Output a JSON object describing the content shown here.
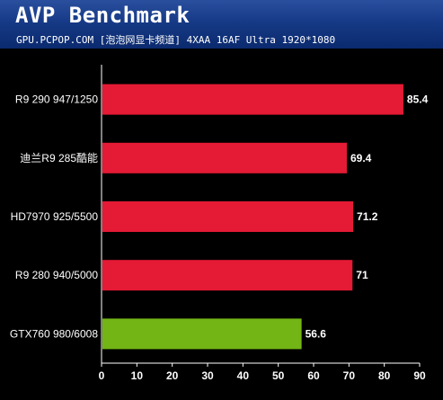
{
  "header": {
    "title": "AVP Benchmark",
    "subtitle": "GPU.PCPOP.COM [泡泡网显卡频道] 4XAA 16AF Ultra 1920*1080"
  },
  "chart_data": {
    "type": "bar",
    "orientation": "horizontal",
    "categories": [
      "R9 290 947/1250",
      "迪兰R9 285酷能",
      "HD7970 925/5500",
      "R9 280 940/5000",
      "GTX760 980/6008"
    ],
    "values": [
      85.4,
      69.4,
      71.2,
      71,
      56.6
    ],
    "value_labels": [
      "85.4",
      "69.4",
      "71.2",
      "71",
      "56.6"
    ],
    "bar_colors": [
      "#e51a35",
      "#e51a35",
      "#e51a35",
      "#e51a35",
      "#72b515"
    ],
    "xlim": [
      0,
      90
    ],
    "xticks": [
      0,
      10,
      20,
      30,
      40,
      50,
      60,
      70,
      80,
      90
    ],
    "title": "AVP Benchmark",
    "xlabel": "",
    "ylabel": "",
    "grid": false,
    "legend": "none"
  }
}
